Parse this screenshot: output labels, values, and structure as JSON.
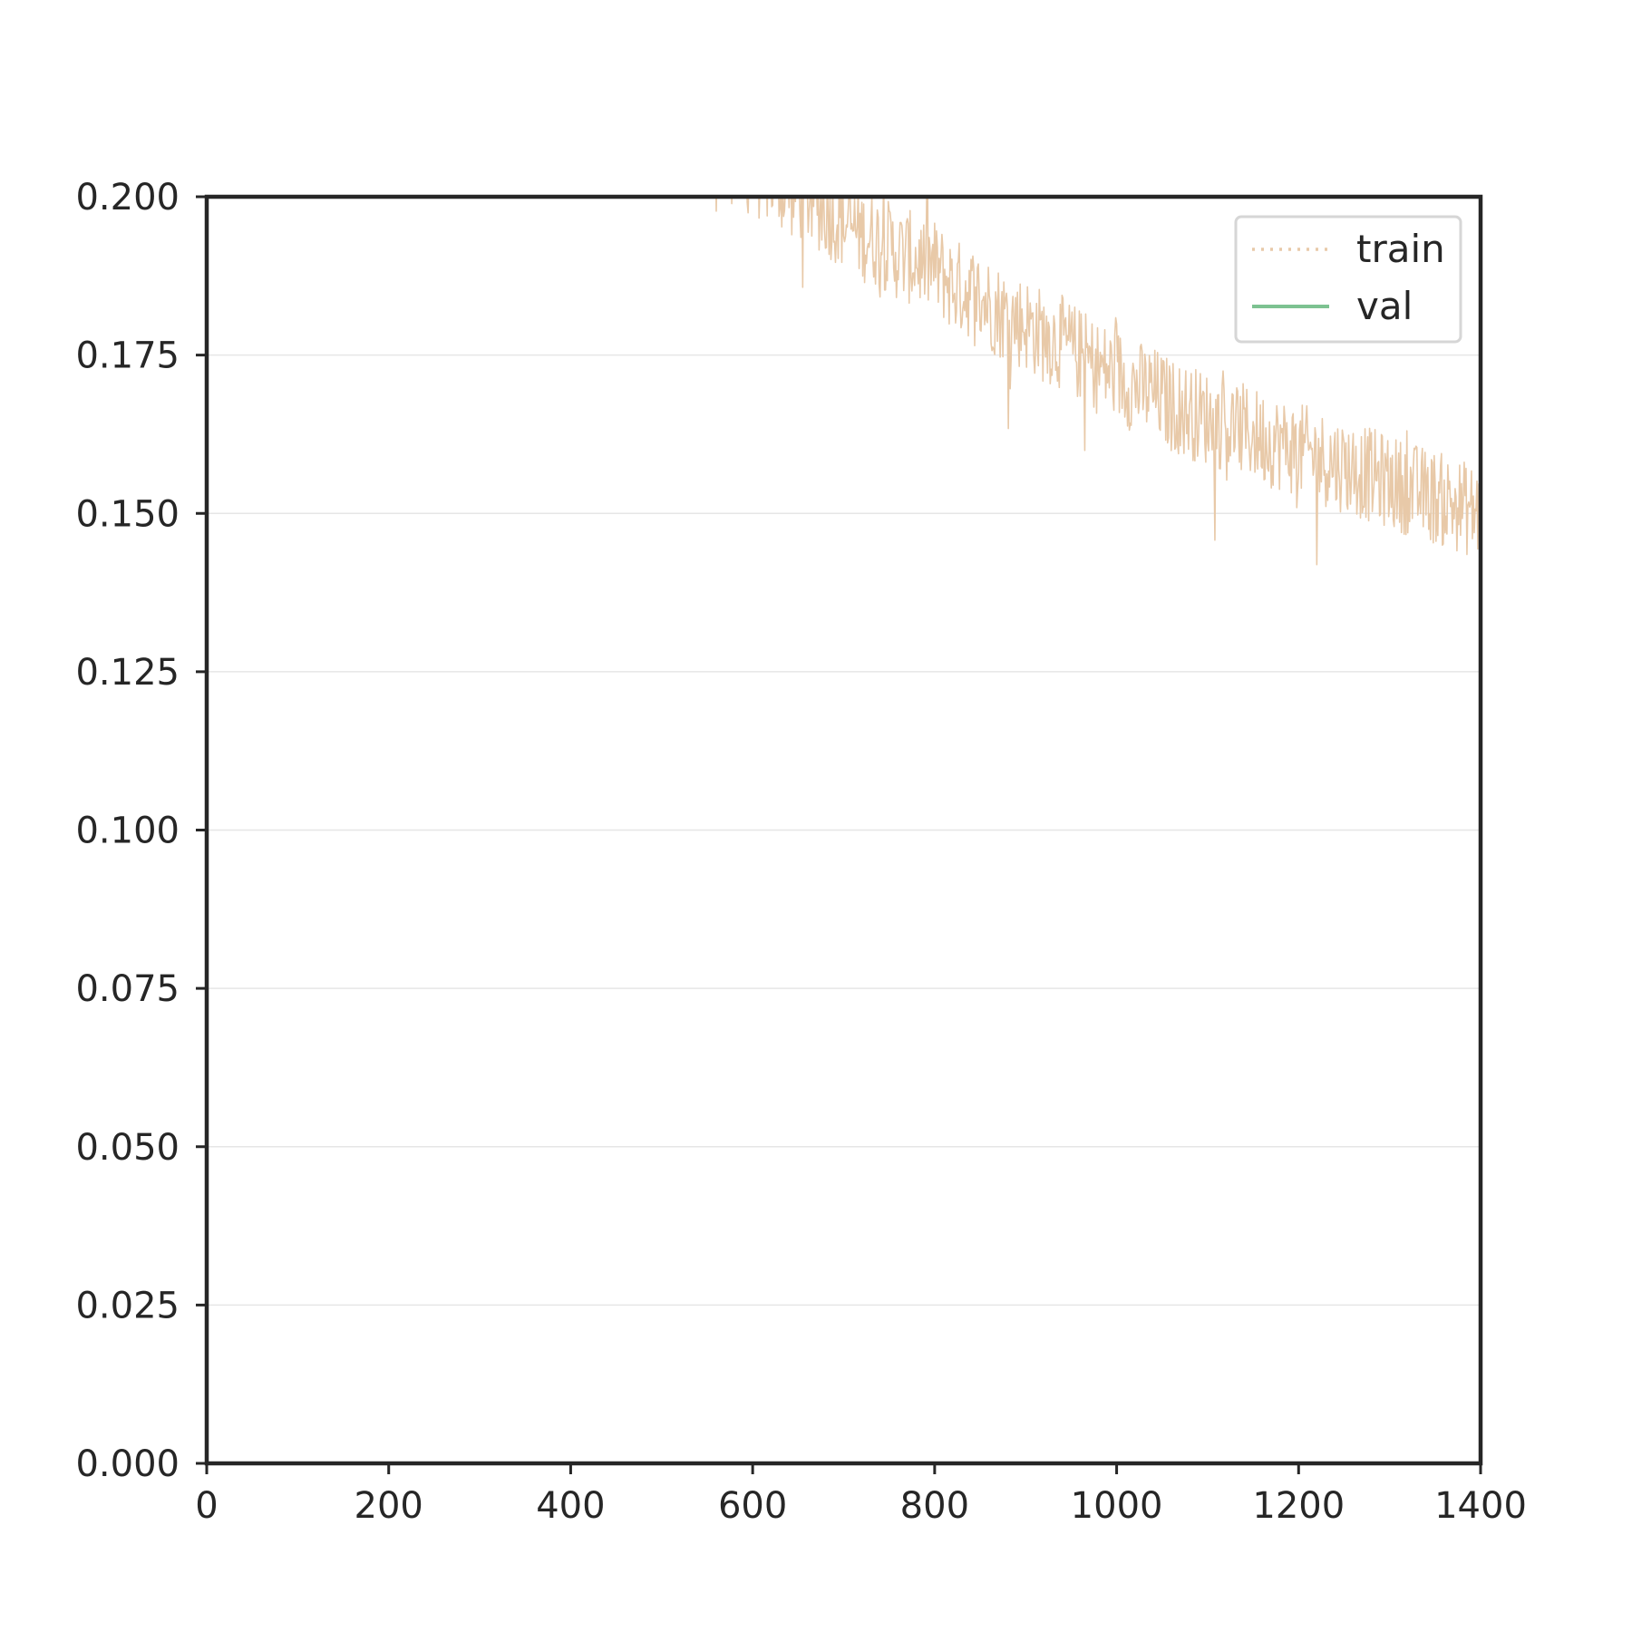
{
  "chart_data": {
    "type": "line",
    "title": "",
    "xlabel": "",
    "ylabel": "",
    "xlim": [
      0,
      1400
    ],
    "ylim": [
      0.0,
      0.2
    ],
    "x_ticks": [
      0,
      200,
      400,
      600,
      800,
      1000,
      1200,
      1400
    ],
    "x_tick_labels": [
      "0",
      "200",
      "400",
      "600",
      "800",
      "1000",
      "1200",
      "1400"
    ],
    "y_ticks": [
      0.0,
      0.025,
      0.05,
      0.075,
      0.1,
      0.125,
      0.15,
      0.175,
      0.2
    ],
    "y_tick_labels": [
      "0.000",
      "0.025",
      "0.050",
      "0.075",
      "0.100",
      "0.125",
      "0.150",
      "0.175",
      "0.200"
    ],
    "grid": "horizontal",
    "legend_position": "top-right",
    "series": [
      {
        "name": "train",
        "color": "#e8c9a8",
        "style": "dotted",
        "noise": "high",
        "x": [
          500,
          520,
          540,
          560,
          580,
          600,
          620,
          640,
          660,
          680,
          700,
          720,
          740,
          760,
          780,
          800,
          820,
          840,
          860,
          880,
          900,
          920,
          940,
          960,
          980,
          1000,
          1020,
          1040,
          1060,
          1080,
          1100,
          1120,
          1140,
          1160,
          1180,
          1200,
          1220,
          1240,
          1260,
          1280,
          1300,
          1320,
          1340,
          1360,
          1380,
          1400
        ],
        "values": [
          0.212,
          0.211,
          0.21,
          0.208,
          0.206,
          0.204,
          0.203,
          0.201,
          0.2,
          0.198,
          0.196,
          0.194,
          0.193,
          0.191,
          0.19,
          0.189,
          0.186,
          0.185,
          0.183,
          0.181,
          0.18,
          0.178,
          0.177,
          0.175,
          0.173,
          0.172,
          0.17,
          0.169,
          0.167,
          0.166,
          0.165,
          0.164,
          0.163,
          0.162,
          0.161,
          0.16,
          0.159,
          0.158,
          0.157,
          0.156,
          0.155,
          0.154,
          0.153,
          0.152,
          0.151,
          0.15
        ]
      },
      {
        "name": "val",
        "color": "#7dc291",
        "style": "solid",
        "x": [],
        "values": []
      }
    ]
  }
}
